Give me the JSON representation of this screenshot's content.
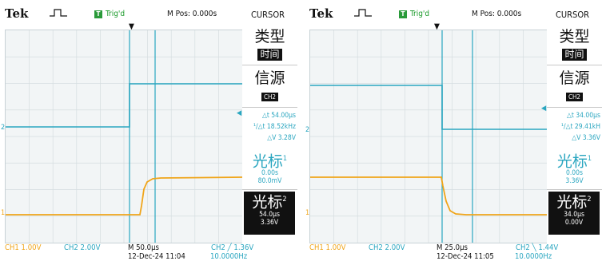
{
  "colors": {
    "ch1": "#f0a51a",
    "ch2": "#2aa6c0",
    "cursor": "#2aa6c0",
    "trig_green": "#2a9a3a"
  },
  "screens": [
    {
      "header": {
        "brand": "Tek",
        "pulse_icon": "rising-pulse-icon",
        "trig_status": "Trig'd",
        "mpos": "M Pos: 0.000s",
        "menu_name": "CURSOR"
      },
      "markers": {
        "ch2_marker": "2",
        "ch1_marker": "1"
      },
      "menu": {
        "type_title": "类型",
        "type_value": "时间",
        "source_title": "信源",
        "source_value": "CH2",
        "delta_t": "△t 54.00μs",
        "inv_delta_t": "18.52kHz",
        "delta_v": "△V 3.28V",
        "cursor1_title": "光标",
        "cursor1_index": "1",
        "cursor1_time": "0.00s",
        "cursor1_volt": "80.0mV",
        "cursor2_title": "光标",
        "cursor2_index": "2",
        "cursor2_time": "54.0μs",
        "cursor2_volt": "3.36V"
      },
      "footer": {
        "ch1": "CH1  1.00V",
        "ch2": "CH2  2.00V",
        "timebase": "M 50.0μs",
        "date": "12-Dec-24 11:04",
        "trigger": "CH2 ╱ 1.36V",
        "freq": "10.0000Hz"
      },
      "waveform": {
        "edge": "rising",
        "ch2_level_div": 1.8,
        "ch1_low_div": -3.5,
        "ch1_high_div": -1.7,
        "edge_time_div": -0.1,
        "cursor1_time_div": 0,
        "cursor2_time_div": 1.08
      }
    },
    {
      "header": {
        "brand": "Tek",
        "pulse_icon": "rising-pulse-icon",
        "trig_status": "Trig'd",
        "mpos": "M Pos: 0.000s",
        "menu_name": "CURSOR"
      },
      "markers": {
        "ch2_marker": "2",
        "ch1_marker": "1"
      },
      "menu": {
        "type_title": "类型",
        "type_value": "时间",
        "source_title": "信源",
        "source_value": "CH2",
        "delta_t": "△t 34.00μs",
        "inv_delta_t": "29.41kH",
        "delta_v": "△V 3.36V",
        "cursor1_title": "光标",
        "cursor1_index": "1",
        "cursor1_time": "0.00s",
        "cursor1_volt": "3.36V",
        "cursor2_title": "光标",
        "cursor2_index": "2",
        "cursor2_time": "34.0μs",
        "cursor2_volt": "0.00V"
      },
      "footer": {
        "ch1": "CH1  1.00V",
        "ch2": "CH2  2.00V",
        "timebase": "M 25.0μs",
        "date": "12-Dec-24 11:05",
        "trigger": "CH2 ╲ 1.44V",
        "freq": "10.0000Hz"
      },
      "waveform": {
        "edge": "falling",
        "ch2_level_div": 1.8,
        "ch1_low_div": -3.5,
        "ch1_high_div": -1.7,
        "edge_time_div": 0,
        "cursor1_time_div": 0,
        "cursor2_time_div": 1.36
      }
    }
  ]
}
